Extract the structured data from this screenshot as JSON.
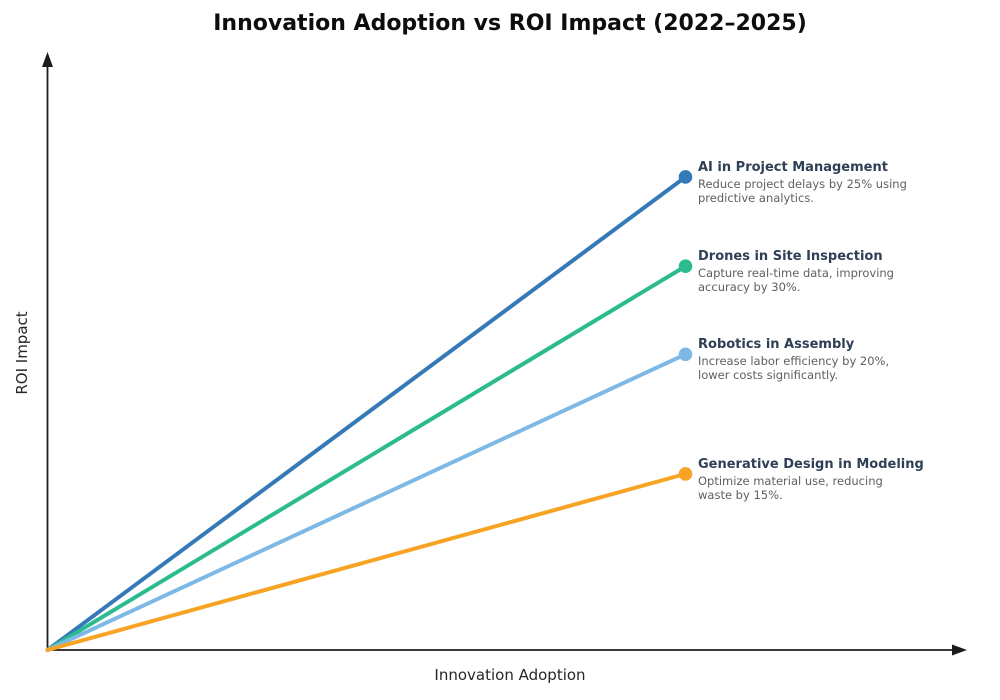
{
  "title": "Innovation Adoption vs ROI Impact (2022–2025)",
  "chart_data": {
    "type": "line",
    "title": "Innovation Adoption vs ROI Impact (2022–2025)",
    "xlabel": "Innovation Adoption",
    "ylabel": "ROI Impact",
    "x_ticks": [],
    "y_ticks": [],
    "axis_arrows": true,
    "axis_color": "#1C1C1C",
    "grid": false,
    "legend": "none",
    "x_range_norm": [
      0,
      1
    ],
    "y_range_norm": [
      0,
      1
    ],
    "annotation_title_color": "#2E3F56",
    "annotation_desc_color": "#5F5F5F",
    "series": [
      {
        "name": "AI in Project Management",
        "description": "Reduce project delays by 25% using predictive analytics.",
        "description_lines": [
          "Reduce project delays by 25% using",
          "predictive analytics."
        ],
        "color": "#3579B6",
        "x": [
          0,
          1
        ],
        "y": [
          0,
          0.795
        ]
      },
      {
        "name": "Drones in Site Inspection",
        "description": "Capture real-time data, improving accuracy by 30%.",
        "description_lines": [
          "Capture real-time data, improving",
          "accuracy by 30%."
        ],
        "color": "#2BBB8F",
        "x": [
          0,
          1
        ],
        "y": [
          0,
          0.645
        ]
      },
      {
        "name": "Robotics in Assembly",
        "description": "Increase labor efficiency by 20%, lower costs significantly.",
        "description_lines": [
          "Increase labor efficiency by 20%,",
          "lower costs significantly."
        ],
        "color": "#7EB9E6",
        "x": [
          0,
          1
        ],
        "y": [
          0,
          0.497
        ]
      },
      {
        "name": "Generative Design in Modeling",
        "description": "Optimize material use, reducing waste by 15%.",
        "description_lines": [
          "Optimize material use, reducing",
          "waste by 15%."
        ],
        "color": "#F7A425",
        "x": [
          0,
          1
        ],
        "y": [
          0,
          0.296
        ]
      }
    ]
  }
}
